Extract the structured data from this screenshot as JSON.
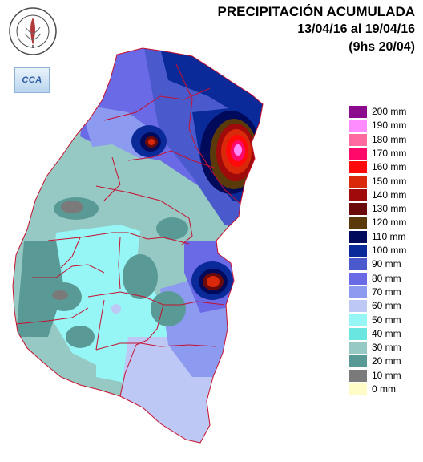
{
  "title": {
    "line1": "PRECIPITACIÓN ACUMULADA",
    "line2": "13/04/16 al 19/04/16",
    "line3": "(9hs 20/04)"
  },
  "logos": {
    "bolsa_text_top": "BOLSA DE CEREALES",
    "bolsa_text_bottom": "DE ENTRE RIOS",
    "cca_text": "CCA"
  },
  "legend": [
    {
      "label": "200 mm",
      "color": "#8c0a8c"
    },
    {
      "label": "190 mm",
      "color": "#ff8cff"
    },
    {
      "label": "180 mm",
      "color": "#ff6aa0"
    },
    {
      "label": "170 mm",
      "color": "#ff0a6a"
    },
    {
      "label": "160 mm",
      "color": "#ff0a0a"
    },
    {
      "label": "150 mm",
      "color": "#d9290a"
    },
    {
      "label": "140 mm",
      "color": "#a00a0a"
    },
    {
      "label": "130 mm",
      "color": "#6a0a0a"
    },
    {
      "label": "120 mm",
      "color": "#5a3a0a"
    },
    {
      "label": "110 mm",
      "color": "#000a5a"
    },
    {
      "label": "100 mm",
      "color": "#0a2a9a"
    },
    {
      "label": "90 mm",
      "color": "#4a5acc"
    },
    {
      "label": "80 mm",
      "color": "#6a6ae6"
    },
    {
      "label": "70 mm",
      "color": "#8c9af0"
    },
    {
      "label": "60 mm",
      "color": "#bec8f5"
    },
    {
      "label": "50 mm",
      "color": "#96f5f5"
    },
    {
      "label": "40 mm",
      "color": "#6ae6e0"
    },
    {
      "label": "30 mm",
      "color": "#96c8c4"
    },
    {
      "label": "20 mm",
      "color": "#5a9a96"
    },
    {
      "label": "10 mm",
      "color": "#7a7a7a"
    },
    {
      "label": "0 mm",
      "color": "#fffcc8"
    }
  ]
}
